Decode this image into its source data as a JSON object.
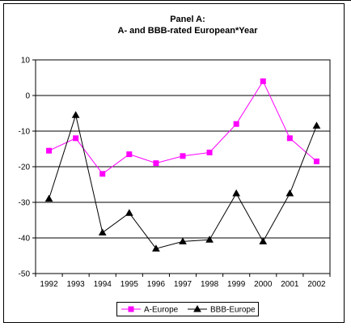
{
  "chart_data": {
    "type": "line",
    "title_line1": "Panel A:",
    "title_line2": "A- and BBB-rated European*Year",
    "xlabel": "",
    "ylabel": "",
    "categories": [
      "1992",
      "1993",
      "1994",
      "1995",
      "1996",
      "1997",
      "1998",
      "1999",
      "2000",
      "2001",
      "2002"
    ],
    "ylim": [
      -50,
      10
    ],
    "yticks": [
      10,
      0,
      -10,
      -20,
      -30,
      -40,
      -50
    ],
    "grid": true,
    "legend_position": "bottom",
    "series": [
      {
        "name": "A-Europe",
        "color": "#ff00ff",
        "marker": "square",
        "values": [
          -15.5,
          -12,
          -22,
          -16.5,
          -19,
          -17,
          -16,
          -8,
          4,
          -12,
          -18.5
        ]
      },
      {
        "name": "BBB-Europe",
        "color": "#000000",
        "marker": "triangle",
        "values": [
          -29,
          -5.5,
          -38.5,
          -33,
          -43,
          -41,
          -40.5,
          -27.5,
          -41,
          -27.5,
          -8.5
        ]
      }
    ]
  }
}
